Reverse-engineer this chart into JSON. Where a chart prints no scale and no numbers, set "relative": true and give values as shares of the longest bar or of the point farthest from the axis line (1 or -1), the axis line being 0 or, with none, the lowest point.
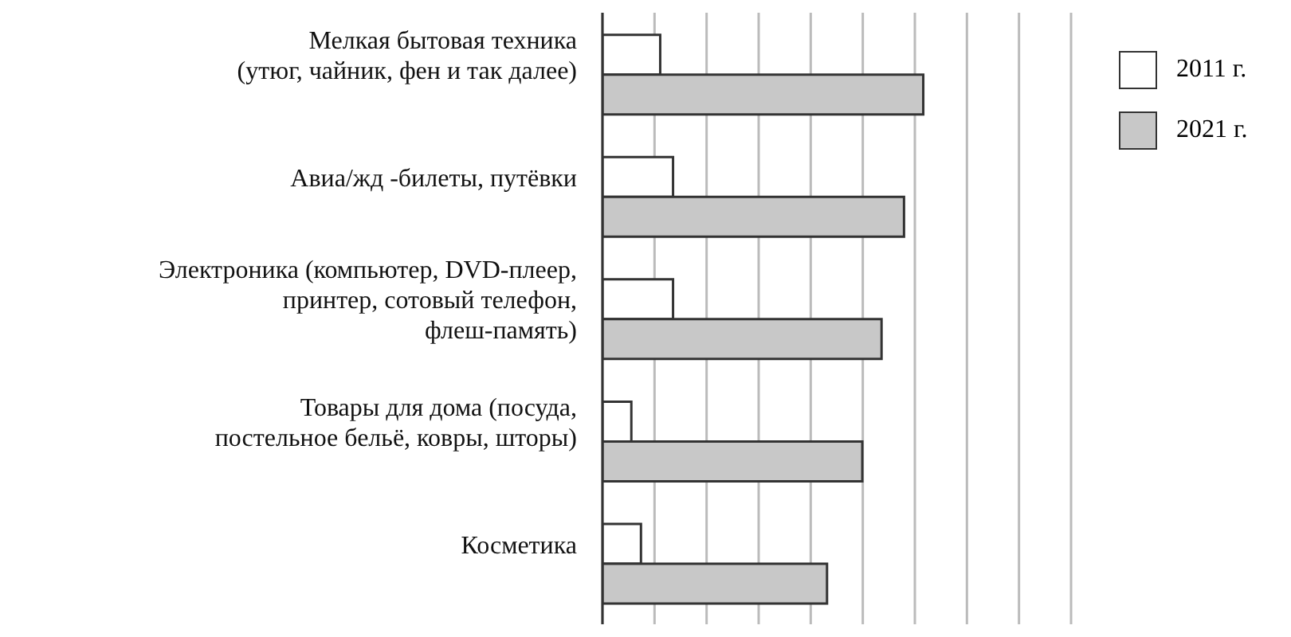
{
  "chart_data": {
    "type": "bar",
    "orientation": "horizontal",
    "relative": true,
    "grid": "x",
    "legend": "top right",
    "categories": [
      "Мелкая бытовая техника\n(утюг, чайник, фен и так далее)",
      "Авиа/жд -билеты, путёвки",
      "Электроника (компьютер, DVD-плеер,\nпринтер, сотовый телефон,\nфлеш-память)",
      "Товары для дома (посуда,\nпостельное бельё, ковры, шторы)",
      "Косметика"
    ],
    "series": [
      {
        "name": "2011 г.",
        "color": "#ffffff",
        "values": [
          0.18,
          0.22,
          0.22,
          0.09,
          0.12
        ]
      },
      {
        "name": "2021 г.",
        "color": "#c8c8c8",
        "values": [
          1,
          0.94,
          0.87,
          0.81,
          0.7
        ]
      }
    ]
  }
}
